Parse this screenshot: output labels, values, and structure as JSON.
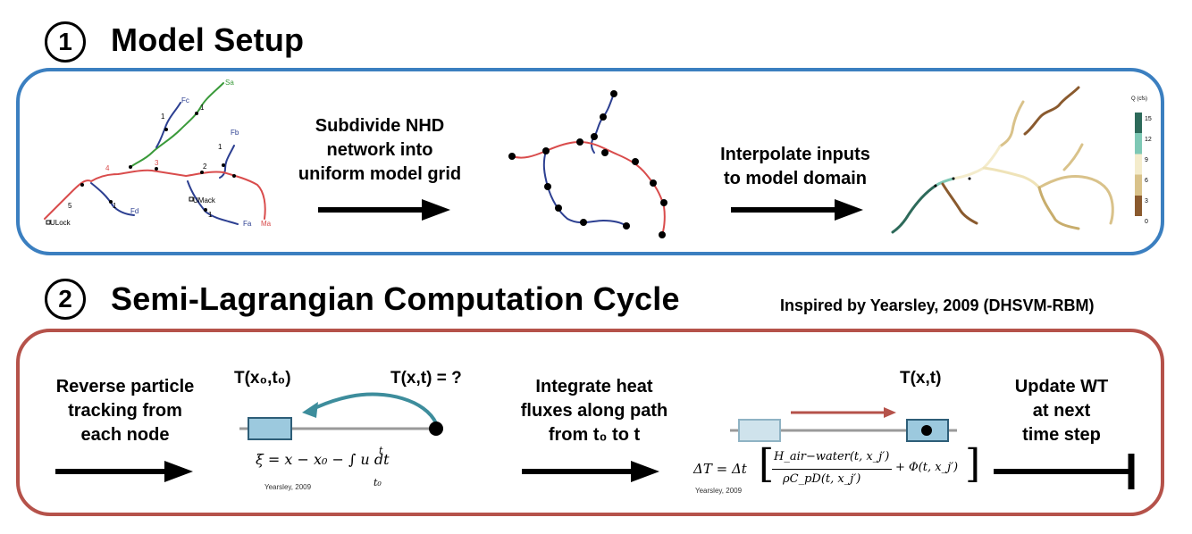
{
  "section1": {
    "number": "1",
    "title": "Model Setup",
    "step_subdivide": [
      "Subdivide NHD",
      "network into",
      "uniform model grid"
    ],
    "step_interpolate": [
      "Interpolate inputs",
      "to model domain"
    ],
    "network_labels": {
      "sa": "Sa",
      "fc": "Fc",
      "fb": "Fb",
      "fd": "Fd",
      "fa": "Fa",
      "ma": "Ma",
      "ulock": "ULock",
      "umack": "UMack",
      "n1a": "1",
      "n1b": "1",
      "n1c": "1",
      "n1d": "1",
      "n1e": "1",
      "n2": "2",
      "n3": "3",
      "n4": "4",
      "n5": "5"
    },
    "colorbar": {
      "label": "Q (cfs)",
      "ticks": [
        "15",
        "12",
        "9",
        "6",
        "3",
        "0"
      ],
      "colors": [
        "#2d6a5a",
        "#7ec8b5",
        "#f4eccc",
        "#d9c28a",
        "#8a5a2e"
      ]
    }
  },
  "section2": {
    "number": "2",
    "title": "Semi-Lagrangian Computation Cycle",
    "credit": "Inspired by Yearsley, 2009 (DHSVM-RBM)",
    "step_reverse": [
      "Reverse particle",
      "tracking from",
      "each node"
    ],
    "T_origin": "T(x₀,t₀)",
    "T_unknown": "T(x,t) = ?",
    "step_integrate": [
      "Integrate heat",
      "fluxes along path",
      "from t₀ to t"
    ],
    "T_final": "T(x,t)",
    "step_update": [
      "Update WT",
      "at next",
      "time step"
    ],
    "eq1_cite": "Yearsley, 2009",
    "eq2_cite": "Yearsley, 2009",
    "eq1": "ξ = x − x₀ − ∫ u dt",
    "eq1_upper": "t",
    "eq1_lower": "t₀",
    "eq2_lhs": "ΔT = Δt",
    "eq2_num": "H_air−water(t, x_j′)",
    "eq2_den": "ρC_pD(t, x_j′)",
    "eq2_tail": "+ Φ(t, x_j′)"
  },
  "colors": {
    "panel1_border": "#3b7fc0",
    "panel2_border": "#b5524a",
    "river_red": "#d94c4c",
    "river_blue": "#2c3f91",
    "river_green": "#3a9a3a",
    "arrow_teal": "#3d8d9c",
    "arrow_red": "#b5524a",
    "box_blue": "#9cc9de"
  }
}
